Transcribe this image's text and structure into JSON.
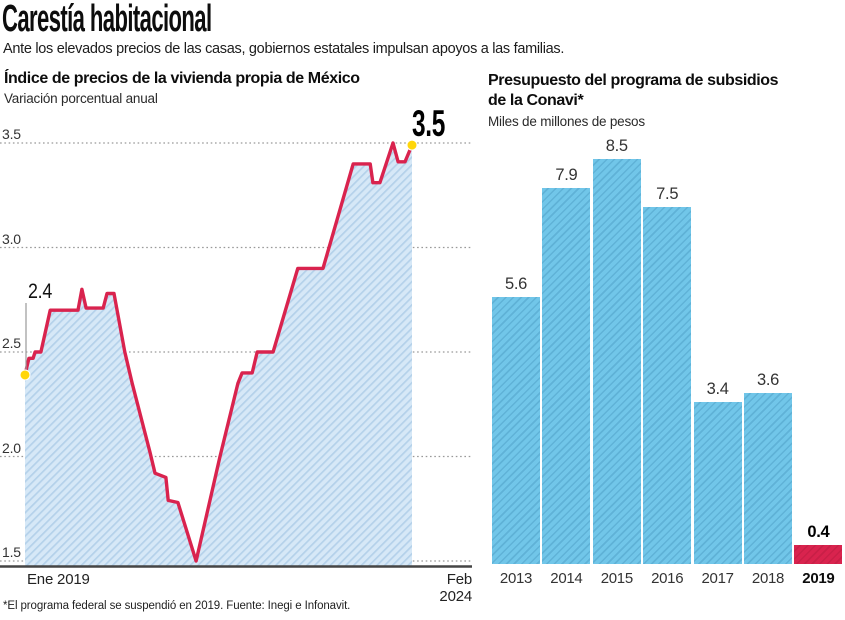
{
  "header": {
    "title": "Carestía habitacional",
    "subtitle": "Ante los elevados precios de las casas, gobiernos estatales impulsan apoyos a las familias."
  },
  "right_chart": {
    "title_line1": "Presupuesto del programa de subsidios",
    "title_line2": "de la Conavi*",
    "subtitle": "Miles de millones de pesos"
  },
  "footnote": "*El programa federal se suspendió en 2019. Fuente: Inegi e Infonavit.",
  "colors": {
    "line_red": "#d9234e",
    "highlight_bar_red": "#d9234e",
    "dot_yellow": "#ffd60a",
    "area_fill_blue": "#d6e8f7",
    "area_hatch_blue": "#b4d1ea",
    "bar_blue": "#71c6e9",
    "bar_hatch_blue": "#5fb2d7",
    "grid_gray": "#999999",
    "axis_gray": "#454545"
  },
  "chart_data": [
    {
      "type": "area",
      "title": "Índice de precios de la vivienda propia de México",
      "ylabel": "Variación porcentual anual",
      "x_range": [
        "Ene 2019",
        "Feb 2024"
      ],
      "y_ticks": [
        "3.5",
        "3.0",
        "2.5",
        "2.0",
        "1.5"
      ],
      "ylim": [
        1.5,
        3.5
      ],
      "grid": "dotted",
      "first_point_label": "2.4",
      "last_point_label": "3.5",
      "points": [
        [
          0.0,
          2.39
        ],
        [
          0.01,
          2.47
        ],
        [
          0.021,
          2.47
        ],
        [
          0.026,
          2.5
        ],
        [
          0.041,
          2.5
        ],
        [
          0.065,
          2.7
        ],
        [
          0.137,
          2.7
        ],
        [
          0.147,
          2.8
        ],
        [
          0.158,
          2.71
        ],
        [
          0.202,
          2.71
        ],
        [
          0.212,
          2.78
        ],
        [
          0.23,
          2.78
        ],
        [
          0.258,
          2.5
        ],
        [
          0.277,
          2.35
        ],
        [
          0.323,
          2.02
        ],
        [
          0.336,
          1.92
        ],
        [
          0.364,
          1.9
        ],
        [
          0.37,
          1.79
        ],
        [
          0.395,
          1.78
        ],
        [
          0.442,
          1.5
        ],
        [
          0.504,
          2.0
        ],
        [
          0.55,
          2.35
        ],
        [
          0.561,
          2.4
        ],
        [
          0.587,
          2.4
        ],
        [
          0.6,
          2.5
        ],
        [
          0.641,
          2.5
        ],
        [
          0.705,
          2.9
        ],
        [
          0.77,
          2.9
        ],
        [
          0.848,
          3.4
        ],
        [
          0.892,
          3.4
        ],
        [
          0.899,
          3.31
        ],
        [
          0.917,
          3.31
        ],
        [
          0.951,
          3.5
        ],
        [
          0.964,
          3.41
        ],
        [
          0.982,
          3.41
        ],
        [
          1.0,
          3.49
        ]
      ]
    },
    {
      "type": "bar",
      "title": "Presupuesto del programa de subsidios de la Conavi*",
      "ylabel": "Miles de millones de pesos",
      "categories": [
        "2013",
        "2014",
        "2015",
        "2016",
        "2017",
        "2018",
        "2019"
      ],
      "values": [
        5.6,
        7.9,
        8.5,
        7.5,
        3.4,
        3.6,
        0.4
      ],
      "highlight_index": 6,
      "ylim": [
        0,
        8.5
      ]
    }
  ]
}
